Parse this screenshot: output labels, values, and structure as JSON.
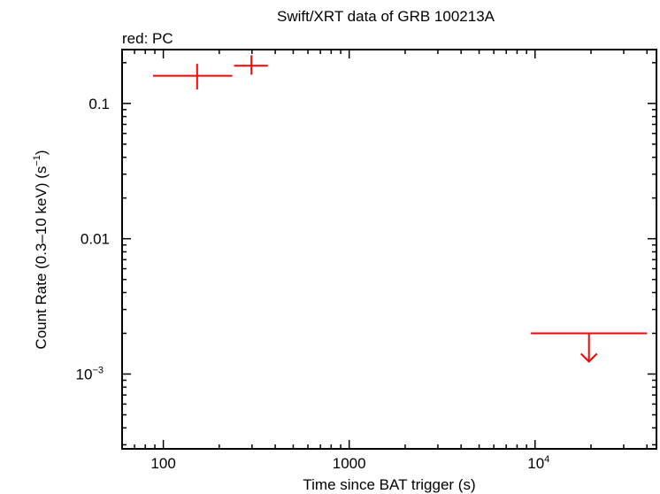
{
  "chart_data": {
    "type": "scatter",
    "title": "Swift/XRT data of GRB 100213A",
    "subtitle": "red: PC",
    "xlabel": "Time since BAT trigger (s)",
    "ylabel_main": "Count Rate (0.3–10 keV) (s",
    "ylabel_sup": "−1",
    "ylabel_close": ")",
    "xscale": "log",
    "yscale": "log",
    "xlim": [
      60,
      45000
    ],
    "ylim": [
      0.00028,
      0.25
    ],
    "x_ticks": [
      {
        "value": 100,
        "base": "100",
        "sup": ""
      },
      {
        "value": 1000,
        "base": "1000",
        "sup": ""
      },
      {
        "value": 10000,
        "base": "10",
        "sup": "4"
      }
    ],
    "y_ticks": [
      {
        "value": 0.1,
        "base": "0.1",
        "sup": ""
      },
      {
        "value": 0.01,
        "base": "0.01",
        "sup": ""
      },
      {
        "value": 0.001,
        "base": "10",
        "sup": "−3"
      }
    ],
    "series": [
      {
        "name": "PC",
        "color": "#ff0000",
        "points": [
          {
            "x": 152,
            "xmin": 88,
            "xmax": 235,
            "y": 0.16,
            "ymin": 0.127,
            "ymax": 0.196
          },
          {
            "x": 298,
            "xmin": 240,
            "xmax": 365,
            "y": 0.19,
            "ymin": 0.163,
            "ymax": 0.227
          }
        ],
        "upper_limits": [
          {
            "x": 19500,
            "xmin": 9500,
            "xmax": 40000,
            "y": 0.002
          }
        ]
      }
    ]
  }
}
